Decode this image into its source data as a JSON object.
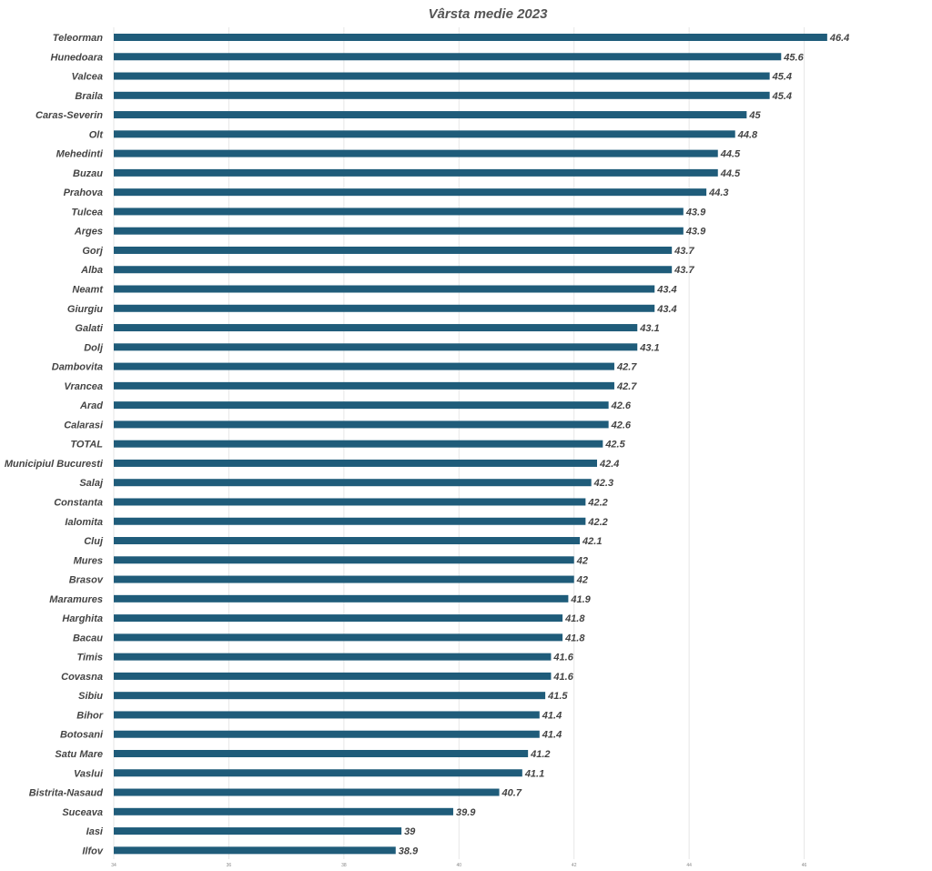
{
  "chart_data": {
    "type": "bar",
    "orientation": "horizontal",
    "title": "Vârsta medie 2023",
    "xlabel": "",
    "ylabel": "",
    "xlim": [
      34,
      48
    ],
    "xticks": [
      "34",
      "36",
      "38",
      "40",
      "42",
      "44",
      "46"
    ],
    "grid": true,
    "legend": "none",
    "bar_color": "#1f5c7a",
    "categories": [
      "Teleorman",
      "Hunedoara",
      "Valcea",
      "Braila",
      "Caras-Severin",
      "Olt",
      "Mehedinti",
      "Buzau",
      "Prahova",
      "Tulcea",
      "Arges",
      "Gorj",
      "Alba",
      "Neamt",
      "Giurgiu",
      "Galati",
      "Dolj",
      "Dambovita",
      "Vrancea",
      "Arad",
      "Calarasi",
      "TOTAL",
      "Municipiul Bucuresti",
      "Salaj",
      "Constanta",
      "Ialomita",
      "Cluj",
      "Mures",
      "Brasov",
      "Maramures",
      "Harghita",
      "Bacau",
      "Timis",
      "Covasna",
      "Sibiu",
      "Bihor",
      "Botosani",
      "Satu Mare",
      "Vaslui",
      "Bistrita-Nasaud",
      "Suceava",
      "Iasi",
      "Ilfov"
    ],
    "values": [
      46.4,
      45.6,
      45.4,
      45.4,
      45,
      44.8,
      44.5,
      44.5,
      44.3,
      43.9,
      43.9,
      43.7,
      43.7,
      43.4,
      43.4,
      43.1,
      43.1,
      42.7,
      42.7,
      42.6,
      42.6,
      42.5,
      42.4,
      42.3,
      42.2,
      42.2,
      42.1,
      42,
      42,
      41.9,
      41.8,
      41.8,
      41.6,
      41.6,
      41.5,
      41.4,
      41.4,
      41.2,
      41.1,
      40.7,
      39.9,
      39,
      38.9
    ],
    "value_labels": [
      "46.4",
      "45.6",
      "45.4",
      "45.4",
      "45",
      "44.8",
      "44.5",
      "44.5",
      "44.3",
      "43.9",
      "43.9",
      "43.7",
      "43.7",
      "43.4",
      "43.4",
      "43.1",
      "43.1",
      "42.7",
      "42.7",
      "42.6",
      "42.6",
      "42.5",
      "42.4",
      "42.3",
      "42.2",
      "42.2",
      "42.1",
      "42",
      "42",
      "41.9",
      "41.8",
      "41.8",
      "41.6",
      "41.6",
      "41.5",
      "41.4",
      "41.4",
      "41.2",
      "41.1",
      "40.7",
      "39.9",
      "39",
      "38.9"
    ]
  }
}
